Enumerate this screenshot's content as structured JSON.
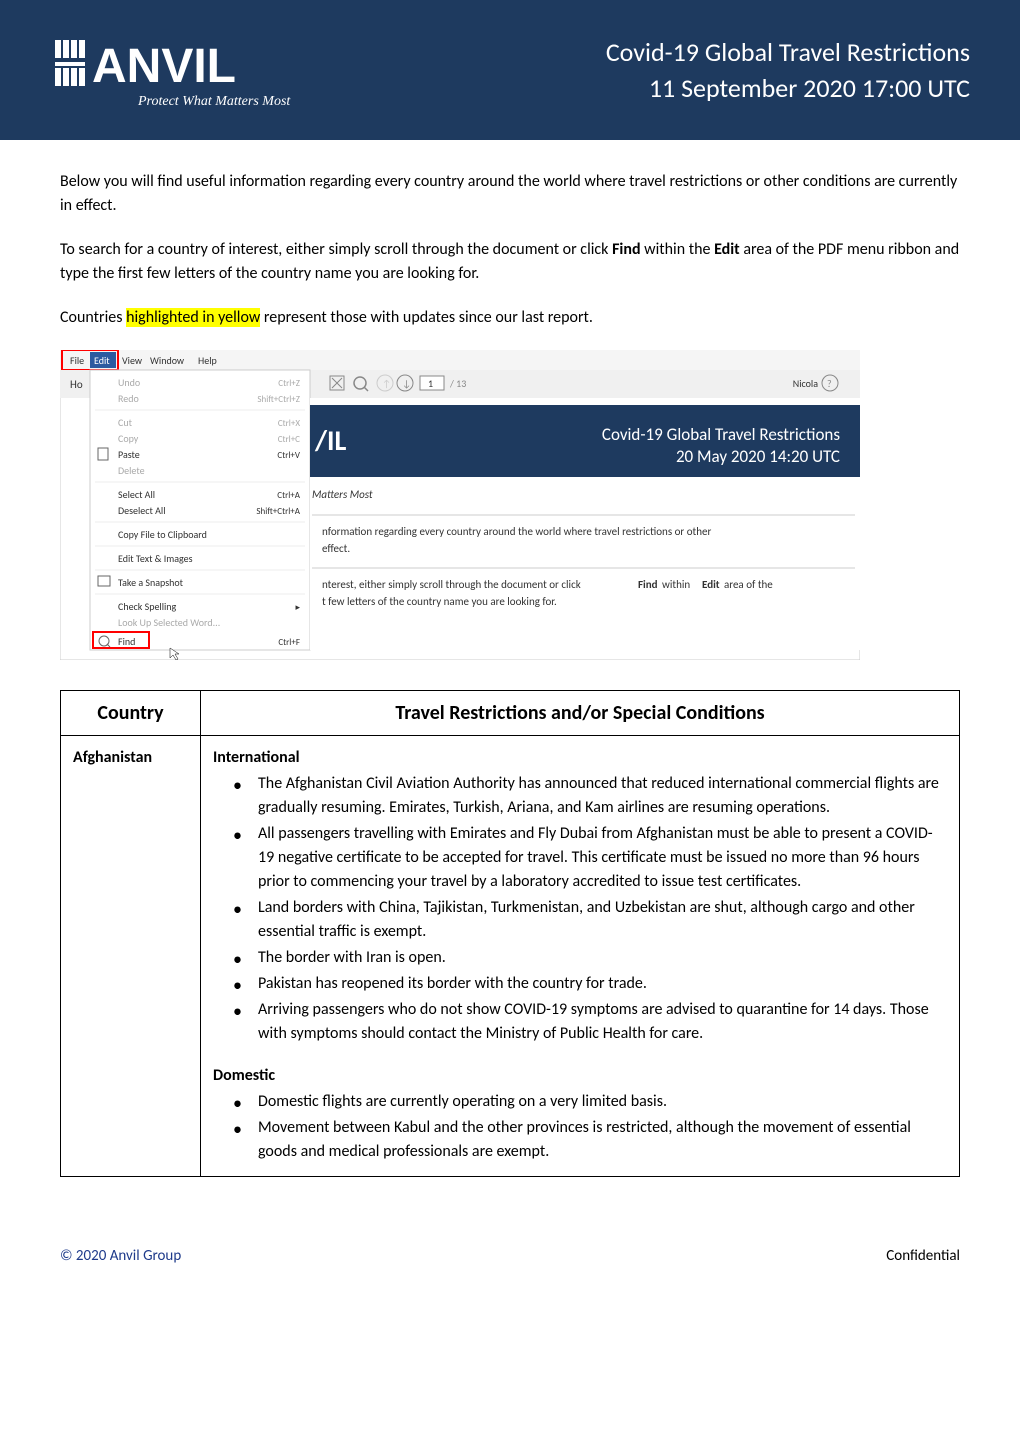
{
  "header": {
    "logo_name": "ANVIL",
    "logo_tagline": "Protect What Matters Most",
    "title_line1": "Covid-19 Global Travel Restrictions",
    "title_line2": "11 September 2020 17:00 UTC"
  },
  "intro": {
    "para1": "Below you will find useful information regarding every country around the world where travel restrictions or other conditions are currently in effect.",
    "para2_part1": "To search for a country of interest, either simply scroll through the document or click ",
    "para2_bold1": "Find",
    "para2_part2": " within the ",
    "para2_bold2": "Edit",
    "para2_part3": " area of the PDF menu ribbon and type the first few letters of the country name you are looking for.",
    "para3_part1": "Countries ",
    "para3_highlight": "highlighted in yellow",
    "para3_part2": " represent those with updates since our last report."
  },
  "screenshot": {
    "menubar": {
      "file": "File",
      "edit": "Edit",
      "view": "View",
      "window": "Window",
      "help": "Help"
    },
    "toolbar": {
      "home": "Ho",
      "page_current": "1",
      "page_total": "/ 13",
      "user": "Nicola"
    },
    "menu_items": [
      {
        "label": "Undo",
        "shortcut": "Ctrl+Z",
        "disabled": true
      },
      {
        "label": "Redo",
        "shortcut": "Shift+Ctrl+Z",
        "disabled": true
      },
      {
        "label": "Cut",
        "shortcut": "Ctrl+X",
        "disabled": true
      },
      {
        "label": "Copy",
        "shortcut": "Ctrl+C",
        "disabled": true
      },
      {
        "label": "Paste",
        "shortcut": "Ctrl+V",
        "disabled": false
      },
      {
        "label": "Delete",
        "shortcut": "",
        "disabled": true
      },
      {
        "label": "Select All",
        "shortcut": "Ctrl+A",
        "disabled": false
      },
      {
        "label": "Deselect All",
        "shortcut": "Shift+Ctrl+A",
        "disabled": false
      },
      {
        "label": "Copy File to Clipboard",
        "shortcut": "",
        "disabled": false
      },
      {
        "label": "Edit Text & Images",
        "shortcut": "",
        "disabled": false
      },
      {
        "label": "Take a Snapshot",
        "shortcut": "",
        "disabled": false
      },
      {
        "label": "Check Spelling",
        "shortcut": "",
        "disabled": false,
        "submenu": true
      },
      {
        "label": "Look Up Selected Word...",
        "shortcut": "",
        "disabled": true
      },
      {
        "label": "Find",
        "shortcut": "Ctrl+F",
        "disabled": false
      }
    ],
    "doc_preview": {
      "title_line1": "Covid-19 Global Travel Restrictions",
      "title_line2": "20 May 2020 14:20 UTC",
      "tagline": "Matters Most",
      "text1": "nformation regarding every country around the world where travel restrictions or other",
      "text2": "effect.",
      "text3_part1": "nterest, either simply scroll through the document or click ",
      "text3_bold": "Find",
      "text3_part2": " within ",
      "text3_bold2": "Edit",
      "text3_part3": " area of the",
      "text4": "t few letters of the country name you are looking for."
    },
    "colors": {
      "red_box": "#ff0000",
      "blue_highlight": "#2c5aa0",
      "menu_bg": "#ffffff",
      "menu_border": "#cccccc",
      "disabled_text": "#aaaaaa",
      "enabled_text": "#333333",
      "dark_header": "#1e3a5f",
      "toolbar_bg": "#f0f0f0"
    }
  },
  "table": {
    "headers": {
      "country": "Country",
      "restrictions": "Travel Restrictions and/or Special Conditions"
    },
    "rows": [
      {
        "country": "Afghanistan",
        "sections": [
          {
            "title": "International",
            "bullets": [
              "The Afghanistan Civil Aviation Authority has announced that reduced international commercial flights are gradually resuming. Emirates, Turkish, Ariana, and Kam airlines are resuming operations.",
              "All passengers travelling with Emirates and Fly Dubai from Afghanistan must be able to present a COVID-19 negative certificate to be accepted for travel. This certificate must be issued no more than 96 hours prior to commencing your travel by a laboratory accredited to issue test certificates.",
              "Land borders with China, Tajikistan, Turkmenistan, and Uzbekistan are shut, although cargo and other essential traffic is exempt.",
              "The border with Iran is open.",
              "Pakistan has reopened its border with the country for trade.",
              "Arriving passengers who do not show COVID-19 symptoms are advised to quarantine for 14 days. Those with symptoms should contact the Ministry of Public Health for care."
            ]
          },
          {
            "title": "Domestic",
            "bullets": [
              "Domestic flights are currently operating on a very limited basis.",
              "Movement between Kabul and the other provinces is restricted, although the movement of essential goods and medical professionals are exempt."
            ]
          }
        ]
      }
    ]
  },
  "footer": {
    "left": "© 2020 Anvil Group",
    "right": "Confidential"
  },
  "colors": {
    "header_bg": "#1e3a5f",
    "header_text": "#ffffff",
    "highlight_bg": "#ffff00",
    "footer_blue": "#1e3a8a",
    "border": "#000000",
    "body_text": "#000000"
  }
}
